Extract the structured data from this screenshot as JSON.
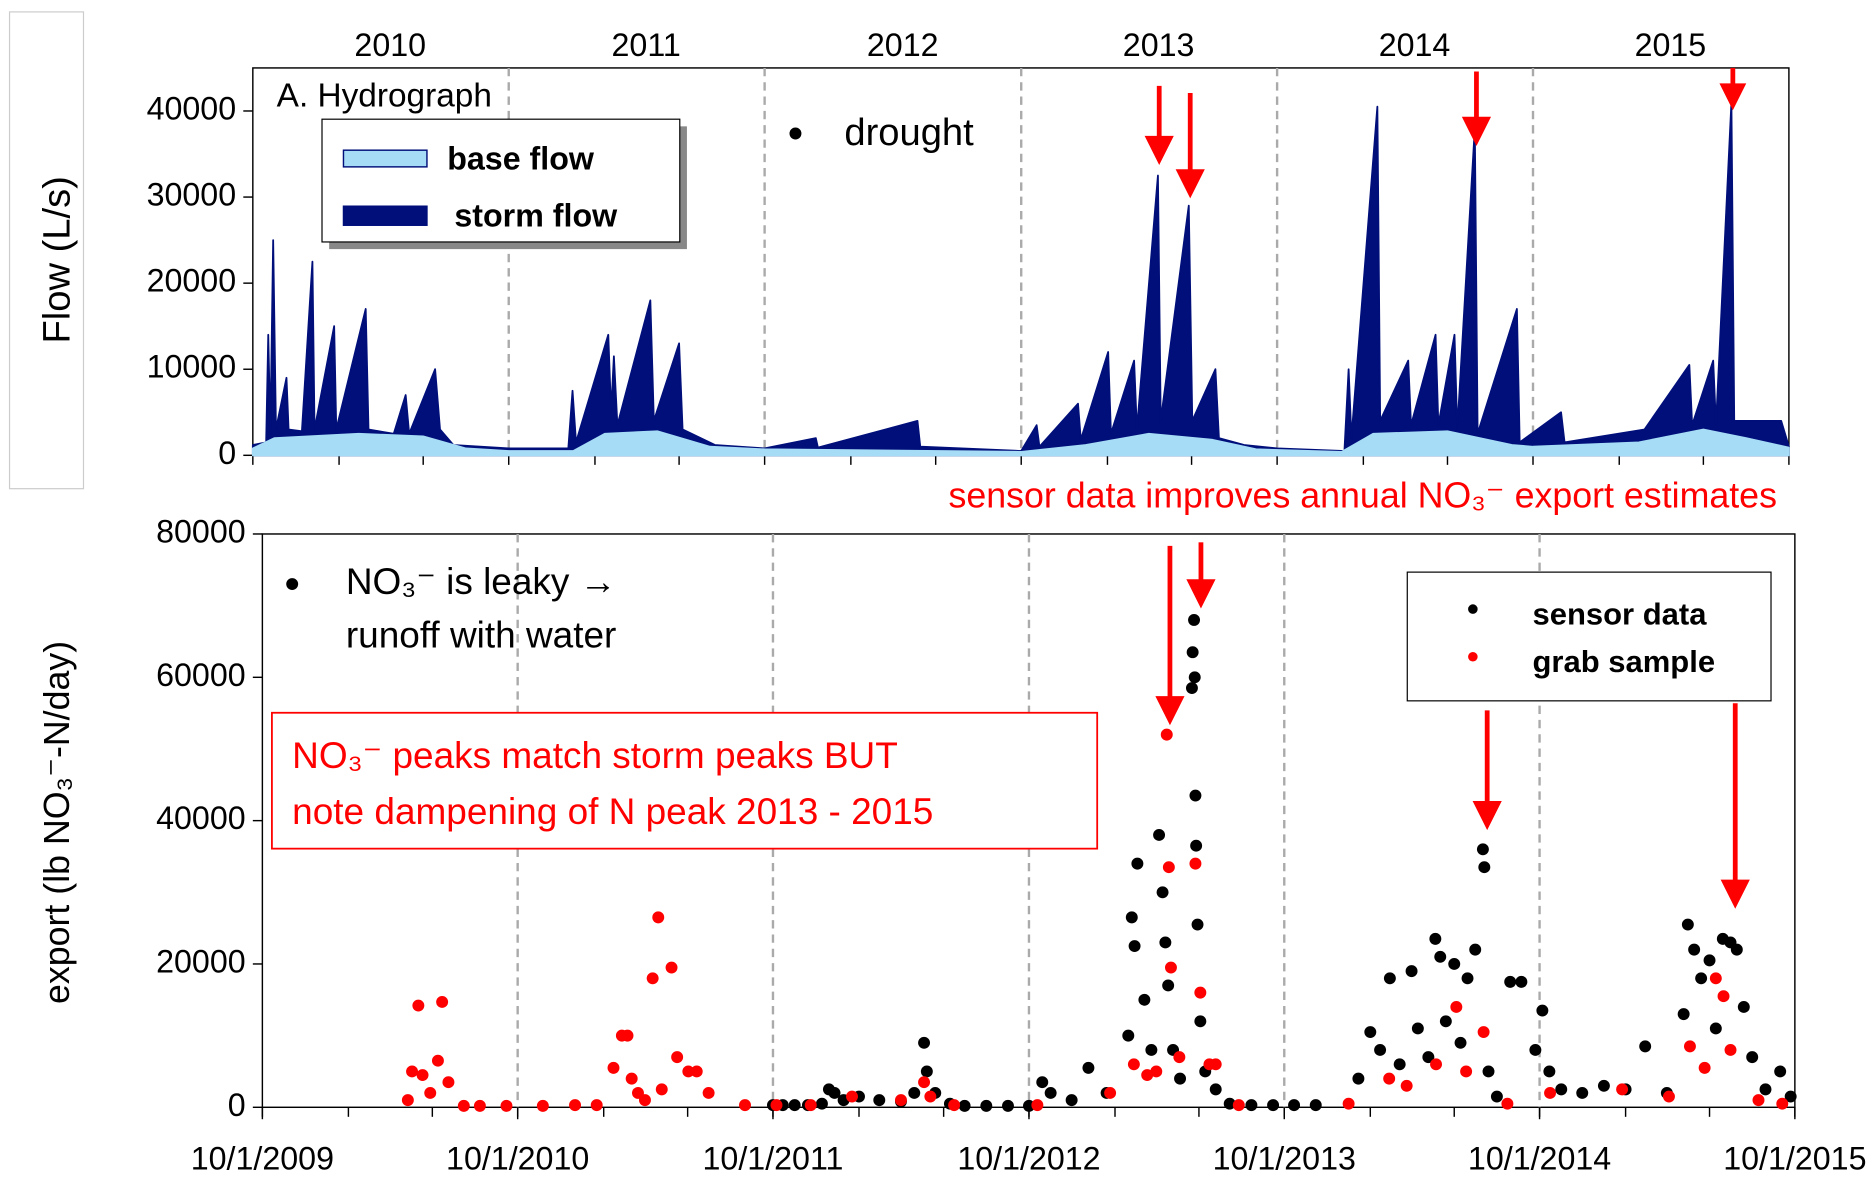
{
  "chart_data": [
    {
      "type": "area",
      "title": "A. Hydrograph",
      "ylabel": "Flow (L/s)",
      "annotation": "drought",
      "year_labels": [
        "2010",
        "2011",
        "2012",
        "2013",
        "2014",
        "2015"
      ],
      "xlim": [
        "10/1/2009",
        "10/1/2015"
      ],
      "ylim": [
        0,
        45000
      ],
      "yticks": [
        0,
        10000,
        20000,
        30000,
        40000
      ],
      "series": [
        {
          "name": "base flow",
          "color": "#a6dcf5",
          "x": [
            "10/1/2009",
            "11/1/2009",
            "3/1/2010",
            "6/1/2010",
            "8/1/2010",
            "10/1/2010",
            "1/1/2011",
            "2/15/2011",
            "5/1/2011",
            "7/15/2011",
            "10/1/2011",
            "10/1/2012",
            "1/1/2013",
            "4/1/2013",
            "7/1/2013",
            "9/1/2013",
            "1/1/2014",
            "2/15/2014",
            "6/1/2014",
            "9/1/2014",
            "10/1/2014",
            "3/1/2015",
            "6/1/2015",
            "8/1/2015",
            "10/1/2015"
          ],
          "values": [
            800,
            2000,
            2500,
            2200,
            800,
            500,
            500,
            2500,
            2800,
            1000,
            700,
            400,
            1200,
            2500,
            1800,
            700,
            400,
            2500,
            2800,
            1200,
            1000,
            1500,
            3000,
            2000,
            900
          ]
        },
        {
          "name": "storm flow",
          "color": "#000f7a",
          "x": [
            "10/1/2009",
            "10/20/2009",
            "10/23/2009",
            "10/26/2009",
            "10/30/2009",
            "11/3/2009",
            "11/18/2009",
            "11/21/2009",
            "12/10/2009",
            "12/25/2009",
            "12/28/2009",
            "1/25/2010",
            "1/28/2010",
            "3/11/2010",
            "3/15/2010",
            "4/20/2010",
            "5/7/2010",
            "5/12/2010",
            "6/18/2010",
            "6/25/2010",
            "7/14/2010",
            "10/1/2010",
            "12/25/2010",
            "12/31/2010",
            "1/5/2011",
            "2/20/2011",
            "2/24/2011",
            "2/28/2011",
            "3/5/2011",
            "4/21/2011",
            "4/26/2011",
            "6/1/2011",
            "6/6/2011",
            "7/22/2011",
            "10/1/2011",
            "12/13/2011",
            "12/16/2011",
            "5/6/2012",
            "5/10/2012",
            "10/1/2012",
            "10/23/2012",
            "10/27/2012",
            "12/21/2012",
            "12/25/2012",
            "2/2/2013",
            "2/6/2013",
            "3/11/2013",
            "3/15/2013",
            "4/14/2013",
            "4/18/2013",
            "5/28/2013",
            "6/2/2013",
            "7/5/2013",
            "7/10/2013",
            "8/15/2013",
            "10/1/2013",
            "1/5/2014",
            "1/11/2014",
            "1/15/2014",
            "2/21/2014",
            "2/25/2014",
            "4/6/2014",
            "4/10/2014",
            "5/15/2014",
            "5/19/2014",
            "6/11/2014",
            "6/15/2014",
            "7/10/2014",
            "7/14/2014",
            "9/8/2014",
            "9/12/2014",
            "11/10/2014",
            "11/15/2014",
            "3/9/2015",
            "5/12/2015",
            "5/16/2015",
            "6/15/2015",
            "6/19/2015",
            "7/11/2015",
            "7/15/2015",
            "9/20/2015",
            "10/1/2015"
          ],
          "values": [
            1200,
            1500,
            14000,
            2500,
            25000,
            3000,
            9000,
            3000,
            2800,
            22500,
            3000,
            15000,
            3000,
            17000,
            3000,
            2500,
            7000,
            2500,
            10000,
            3000,
            1200,
            800,
            800,
            7500,
            1500,
            14000,
            5000,
            11500,
            3500,
            18000,
            4000,
            13000,
            3000,
            1200,
            800,
            2000,
            900,
            4000,
            1000,
            500,
            3500,
            1000,
            6000,
            1800,
            12000,
            2500,
            11000,
            3000,
            32500,
            4000,
            29000,
            4000,
            10000,
            2000,
            1200,
            800,
            500,
            10000,
            2000,
            40500,
            4000,
            11000,
            3500,
            14000,
            3500,
            14000,
            3000,
            38000,
            2500,
            17000,
            1500,
            5000,
            1500,
            3000,
            10500,
            3500,
            11000,
            3500,
            41000,
            4000,
            4000,
            1000
          ]
        }
      ]
    },
    {
      "type": "scatter",
      "ylabel": "export (lb NO₃⁻-N/day)",
      "headline": "sensor data improves annual NO₃⁻ export estimates",
      "annotation": [
        "NO₃⁻ is leaky →",
        "runoff with water"
      ],
      "callout": [
        "NO₃⁻ peaks match storm peaks BUT",
        "note dampening of N peak 2013 - 2015"
      ],
      "xlim": [
        "10/1/2009",
        "10/1/2015"
      ],
      "xticks": [
        "10/1/2009",
        "10/1/2010",
        "10/1/2011",
        "10/1/2012",
        "10/1/2013",
        "10/1/2014",
        "10/1/2015"
      ],
      "ylim": [
        0,
        80000
      ],
      "yticks": [
        0,
        20000,
        40000,
        60000,
        80000
      ],
      "grid": "dashed",
      "series": [
        {
          "name": "sensor data",
          "color": "#000000",
          "x": [
            "10/1/2011",
            "10/15/2011",
            "11/1/2011",
            "11/20/2011",
            "12/10/2011",
            "12/20/2011",
            "12/28/2011",
            "1/10/2012",
            "2/1/2012",
            "3/1/2012",
            "4/1/2012",
            "4/20/2012",
            "5/4/2012",
            "5/8/2012",
            "5/20/2012",
            "6/10/2012",
            "7/1/2012",
            "8/1/2012",
            "9/1/2012",
            "10/1/2012",
            "10/20/2012",
            "11/1/2012",
            "12/1/2012",
            "12/25/2012",
            "1/20/2013",
            "2/20/2013",
            "2/25/2013",
            "3/1/2013",
            "3/5/2013",
            "3/15/2013",
            "3/25/2013",
            "4/5/2013",
            "4/10/2013",
            "4/14/2013",
            "4/18/2013",
            "4/25/2013",
            "5/5/2013",
            "5/22/2013",
            "5/23/2013",
            "5/25/2013",
            "5/26/2013",
            "5/27/2013",
            "5/28/2013",
            "5/30/2013",
            "6/3/2013",
            "6/10/2013",
            "6/25/2013",
            "7/15/2013",
            "8/15/2013",
            "9/15/2013",
            "10/15/2013",
            "11/15/2013",
            "1/15/2014",
            "2/1/2014",
            "2/15/2014",
            "3/1/2014",
            "3/15/2014",
            "4/1/2014",
            "4/10/2014",
            "4/25/2014",
            "5/5/2014",
            "5/12/2014",
            "5/20/2014",
            "6/1/2014",
            "6/10/2014",
            "6/20/2014",
            "7/1/2014",
            "7/12/2014",
            "7/14/2014",
            "7/20/2014",
            "8/1/2014",
            "8/20/2014",
            "9/5/2014",
            "9/25/2014",
            "10/5/2014",
            "10/15/2014",
            "11/1/2014",
            "12/1/2014",
            "1/1/2015",
            "2/1/2015",
            "3/1/2015",
            "4/1/2015",
            "4/25/2015",
            "5/1/2015",
            "5/10/2015",
            "5/20/2015",
            "6/1/2015",
            "6/10/2015",
            "6/20/2015",
            "7/1/2015",
            "7/10/2015",
            "7/20/2015",
            "8/1/2015",
            "8/20/2015",
            "9/10/2015",
            "9/25/2015"
          ],
          "values": [
            300,
            300,
            300,
            300,
            500,
            2500,
            2000,
            1000,
            1500,
            1000,
            800,
            2000,
            9000,
            5000,
            2000,
            500,
            200,
            200,
            200,
            200,
            3500,
            2000,
            1000,
            5500,
            2000,
            10000,
            26500,
            22500,
            34000,
            15000,
            8000,
            38000,
            30000,
            23000,
            17000,
            8000,
            4000,
            58500,
            63500,
            68000,
            60000,
            43500,
            36500,
            25500,
            12000,
            5000,
            2500,
            500,
            300,
            300,
            300,
            300,
            4000,
            10500,
            8000,
            18000,
            6000,
            19000,
            11000,
            7000,
            23500,
            21000,
            12000,
            20000,
            9000,
            18000,
            22000,
            36000,
            33500,
            5000,
            1500,
            17500,
            17500,
            8000,
            13500,
            5000,
            2500,
            2000,
            3000,
            2500,
            8500,
            2000,
            13000,
            25500,
            22000,
            18000,
            20500,
            11000,
            23500,
            23000,
            22000,
            14000,
            7000,
            2500,
            5000,
            1500
          ]
        },
        {
          "name": "grab sample",
          "color": "#ff0000",
          "x": [
            "4/27/2010",
            "5/3/2010",
            "5/12/2010",
            "5/18/2010",
            "5/29/2010",
            "6/9/2010",
            "6/15/2010",
            "6/24/2010",
            "7/16/2010",
            "8/8/2010",
            "9/15/2010",
            "11/6/2010",
            "12/22/2010",
            "1/22/2011",
            "2/15/2011",
            "2/27/2011",
            "3/7/2011",
            "3/13/2011",
            "3/22/2011",
            "4/1/2011",
            "4/12/2011",
            "4/20/2011",
            "4/25/2011",
            "5/9/2011",
            "5/17/2011",
            "6/2/2011",
            "6/14/2011",
            "7/1/2011",
            "8/22/2011",
            "10/6/2011",
            "11/24/2011",
            "1/22/2012",
            "4/1/2012",
            "5/4/2012",
            "5/13/2012",
            "6/16/2012",
            "10/13/2012",
            "1/25/2013",
            "2/28/2013",
            "3/19/2013",
            "4/1/2013",
            "4/16/2013",
            "4/19/2013",
            "4/22/2013",
            "5/4/2013",
            "5/27/2013",
            "6/3/2013",
            "6/16/2013",
            "6/25/2013",
            "7/28/2013",
            "1/1/2014",
            "2/28/2014",
            "3/25/2014",
            "5/6/2014",
            "6/4/2014",
            "6/18/2014",
            "7/13/2014",
            "8/16/2014",
            "10/16/2014",
            "1/27/2015",
            "4/4/2015",
            "5/4/2015",
            "5/25/2015",
            "6/10/2015",
            "6/21/2015",
            "7/1/2015",
            "8/10/2015",
            "9/13/2015"
          ],
          "values": [
            1000,
            5000,
            14200,
            4500,
            2000,
            6500,
            14700,
            3500,
            200,
            200,
            200,
            200,
            300,
            300,
            5500,
            10000,
            10000,
            4000,
            2000,
            1000,
            18000,
            26500,
            2500,
            19500,
            7000,
            5000,
            5000,
            2000,
            300,
            300,
            300,
            1500,
            1000,
            3500,
            1500,
            300,
            300,
            2000,
            6000,
            4500,
            5000,
            52000,
            33500,
            19500,
            7000,
            34000,
            16000,
            6000,
            6000,
            300,
            500,
            4000,
            3000,
            6000,
            14000,
            5000,
            10500,
            500,
            2000,
            2500,
            1500,
            8500,
            5500,
            18000,
            15500,
            8000,
            1000,
            500
          ]
        }
      ]
    }
  ]
}
